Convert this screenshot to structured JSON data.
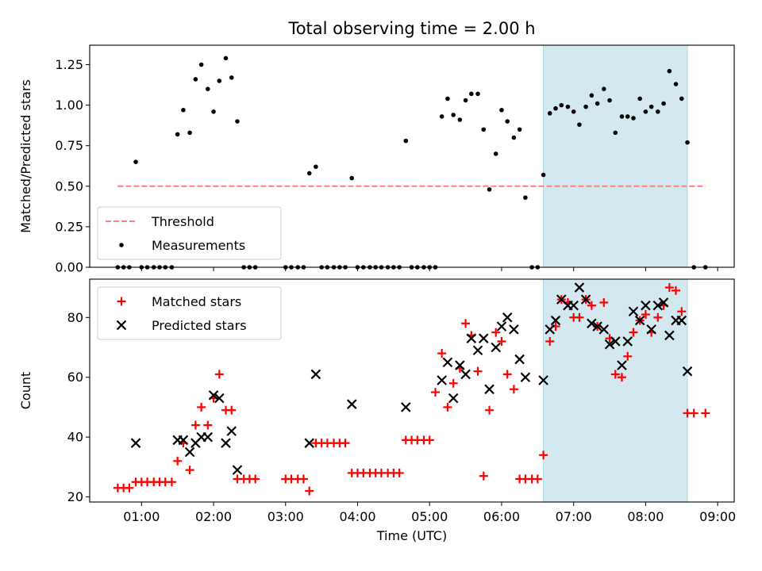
{
  "chart_data": [
    {
      "type": "scatter",
      "title": "Total observing time = 2.00 h",
      "xlabel": "",
      "ylabel": "Matched/Predicted stars",
      "xlim": [
        0.28,
        9.23
      ],
      "ylim": [
        0,
        1.37
      ],
      "yticks": [
        "0.00",
        "0.25",
        "0.50",
        "0.75",
        "1.00",
        "1.25"
      ],
      "yticks_values": [
        0,
        0.25,
        0.5,
        0.75,
        1.0,
        1.25
      ],
      "xticks_values": [
        1,
        2,
        3,
        4,
        5,
        6,
        7,
        8,
        9
      ],
      "shaded_span": [
        6.58,
        8.58
      ],
      "shaded_color": "#d3e9ef",
      "threshold": {
        "name": "Threshold",
        "value": 0.5,
        "x_range": [
          0.67,
          8.83
        ],
        "color": "#ff7f7f"
      },
      "series": [
        {
          "name": "Measurements",
          "color": "#000000",
          "x": [
            0.67,
            0.75,
            0.83,
            0.92,
            1.0,
            1.08,
            1.17,
            1.25,
            1.33,
            1.42,
            1.5,
            1.58,
            1.67,
            1.75,
            1.83,
            1.92,
            2.0,
            2.08,
            2.17,
            2.25,
            2.33,
            2.42,
            2.5,
            2.58,
            3.0,
            3.08,
            3.17,
            3.25,
            3.33,
            3.42,
            3.5,
            3.58,
            3.67,
            3.75,
            3.83,
            3.92,
            4.0,
            4.08,
            4.17,
            4.25,
            4.33,
            4.42,
            4.5,
            4.58,
            4.67,
            4.75,
            4.83,
            4.92,
            5.0,
            5.08,
            5.17,
            5.25,
            5.33,
            5.42,
            5.5,
            5.58,
            5.67,
            5.75,
            5.83,
            5.92,
            6.0,
            6.08,
            6.17,
            6.25,
            6.33,
            6.42,
            6.5,
            6.58,
            6.67,
            6.75,
            6.83,
            6.92,
            7.0,
            7.08,
            7.17,
            7.25,
            7.33,
            7.42,
            7.5,
            7.58,
            7.67,
            7.75,
            7.83,
            7.92,
            8.0,
            8.08,
            8.17,
            8.25,
            8.33,
            8.42,
            8.5,
            8.58,
            8.67,
            8.83
          ],
          "y": [
            0,
            0,
            0,
            0.65,
            0,
            0,
            0,
            0,
            0,
            0,
            0.82,
            0.97,
            0.83,
            1.16,
            1.25,
            1.1,
            0.96,
            1.15,
            1.29,
            1.17,
            0.9,
            0,
            0,
            0,
            0,
            0,
            0,
            0,
            0.58,
            0.62,
            0,
            0,
            0,
            0,
            0,
            0.55,
            0,
            0,
            0,
            0,
            0,
            0,
            0,
            0,
            0.78,
            0,
            0,
            0,
            0,
            0,
            0.93,
            1.04,
            0.94,
            0.91,
            1.03,
            1.07,
            1.07,
            0.85,
            0.48,
            0.7,
            0.97,
            0.9,
            0.8,
            0.85,
            0.43,
            0,
            0,
            0.57,
            0.95,
            0.98,
            1.0,
            0.99,
            0.96,
            0.88,
            0.99,
            1.06,
            1.01,
            1.1,
            1.03,
            0.83,
            0.93,
            0.93,
            0.92,
            1.04,
            0.96,
            0.99,
            0.96,
            1.01,
            1.21,
            1.13,
            1.04,
            0.77,
            0,
            0
          ]
        }
      ],
      "legend_placement": "lower-left"
    },
    {
      "type": "scatter",
      "title": "",
      "xlabel": "Time (UTC)",
      "ylabel": "Count",
      "xlim": [
        0.28,
        9.23
      ],
      "ylim": [
        18.3,
        92.8
      ],
      "yticks": [
        "20",
        "40",
        "60",
        "80"
      ],
      "yticks_values": [
        20,
        40,
        60,
        80
      ],
      "xticks": [
        "01:00",
        "02:00",
        "03:00",
        "04:00",
        "05:00",
        "06:00",
        "07:00",
        "08:00",
        "09:00"
      ],
      "xticks_values": [
        1,
        2,
        3,
        4,
        5,
        6,
        7,
        8,
        9
      ],
      "shaded_span": [
        6.58,
        8.58
      ],
      "shaded_color": "#d3e9ef",
      "series": [
        {
          "name": "Matched stars",
          "color": "#ff0000",
          "marker": "plus",
          "x": [
            0.67,
            0.75,
            0.83,
            0.92,
            1.0,
            1.08,
            1.17,
            1.25,
            1.33,
            1.42,
            1.5,
            1.58,
            1.67,
            1.75,
            1.83,
            1.92,
            2.0,
            2.08,
            2.17,
            2.25,
            2.33,
            2.42,
            2.5,
            2.58,
            3.0,
            3.08,
            3.17,
            3.25,
            3.33,
            3.42,
            3.5,
            3.58,
            3.67,
            3.75,
            3.83,
            3.92,
            4.0,
            4.08,
            4.17,
            4.25,
            4.33,
            4.42,
            4.5,
            4.58,
            4.67,
            4.75,
            4.83,
            4.92,
            5.0,
            5.08,
            5.17,
            5.25,
            5.33,
            5.42,
            5.5,
            5.58,
            5.67,
            5.75,
            5.83,
            5.92,
            6.0,
            6.08,
            6.17,
            6.25,
            6.33,
            6.42,
            6.5,
            6.58,
            6.67,
            6.75,
            6.83,
            6.92,
            7.0,
            7.08,
            7.17,
            7.25,
            7.33,
            7.42,
            7.5,
            7.58,
            7.67,
            7.75,
            7.83,
            7.92,
            8.0,
            8.08,
            8.17,
            8.25,
            8.33,
            8.42,
            8.5,
            8.58,
            8.67,
            8.83
          ],
          "y": [
            23,
            23,
            23,
            25,
            25,
            25,
            25,
            25,
            25,
            25,
            32,
            38,
            29,
            44,
            50,
            44,
            53,
            61,
            49,
            49,
            26,
            26,
            26,
            26,
            26,
            26,
            26,
            26,
            22,
            38,
            38,
            38,
            38,
            38,
            38,
            28,
            28,
            28,
            28,
            28,
            28,
            28,
            28,
            28,
            39,
            39,
            39,
            39,
            39,
            55,
            68,
            50,
            58,
            63,
            78,
            74,
            62,
            27,
            49,
            75,
            72,
            61,
            56,
            26,
            26,
            26,
            26,
            34,
            72,
            77,
            86,
            85,
            80,
            80,
            86,
            84,
            77,
            85,
            73,
            61,
            60,
            67,
            75,
            79,
            81,
            75,
            80,
            84,
            90,
            89,
            82,
            48,
            48,
            48
          ]
        },
        {
          "name": "Predicted stars",
          "color": "#000000",
          "marker": "x",
          "x": [
            0.92,
            1.5,
            1.58,
            1.67,
            1.75,
            1.83,
            1.92,
            2.0,
            2.08,
            2.17,
            2.25,
            2.33,
            3.33,
            3.42,
            3.92,
            4.67,
            5.17,
            5.25,
            5.33,
            5.42,
            5.5,
            5.58,
            5.67,
            5.75,
            5.83,
            5.92,
            6.0,
            6.08,
            6.17,
            6.25,
            6.33,
            6.58,
            6.67,
            6.75,
            6.83,
            6.92,
            7.0,
            7.08,
            7.17,
            7.25,
            7.33,
            7.42,
            7.5,
            7.58,
            7.67,
            7.75,
            7.83,
            7.92,
            8.0,
            8.08,
            8.17,
            8.25,
            8.33,
            8.42,
            8.5,
            8.58
          ],
          "y": [
            38,
            39,
            39,
            35,
            38,
            40,
            40,
            54,
            53,
            38,
            42,
            29,
            38,
            61,
            51,
            50,
            59,
            65,
            53,
            64,
            61,
            73,
            69,
            73,
            56,
            70,
            77,
            80,
            76,
            66,
            60,
            59,
            76,
            79,
            86,
            84,
            84,
            90,
            86,
            78,
            77,
            76,
            71,
            72,
            64,
            72,
            82,
            79,
            84,
            76,
            84,
            85,
            74,
            79,
            79,
            62
          ]
        }
      ],
      "legend_placement": "upper-left"
    }
  ]
}
